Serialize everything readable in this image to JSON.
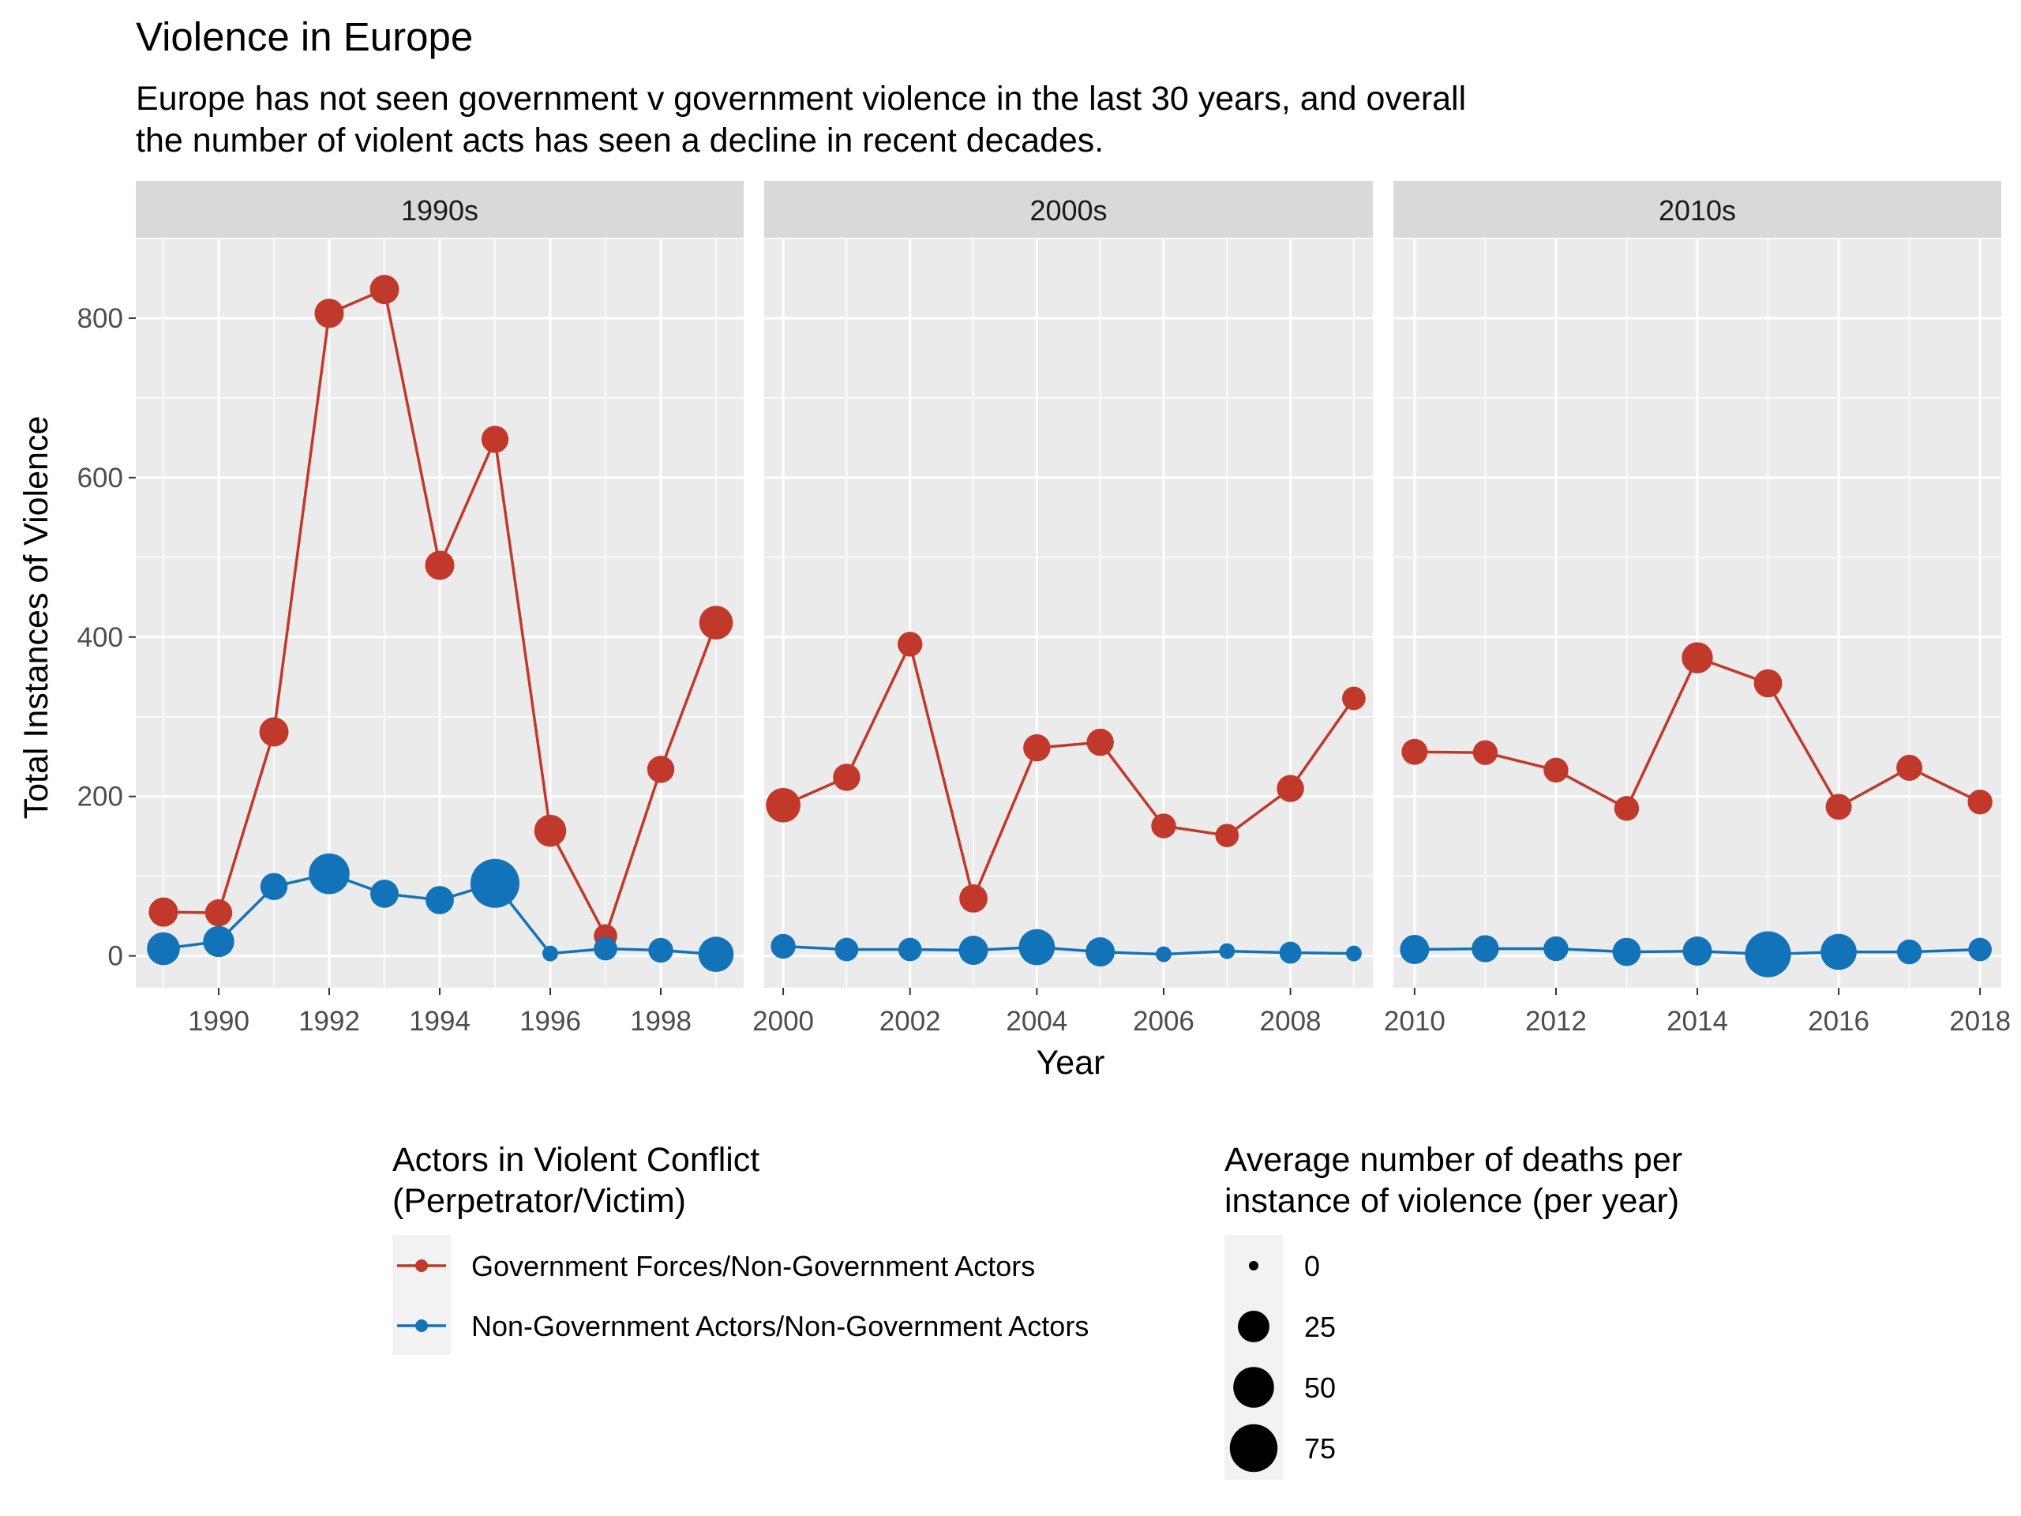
{
  "chart_data": {
    "type": "line",
    "title": "Violence in Europe",
    "subtitle_lines": [
      "Europe has not seen government v government violence in the last 30 years, and overall",
      "the number of violent acts has seen a decline in recent decades."
    ],
    "xlabel": "Year",
    "ylabel": "Total Instances of Violence",
    "ylim": [
      -40,
      900
    ],
    "yticks": [
      0,
      200,
      400,
      600,
      800
    ],
    "grid": true,
    "facets": [
      {
        "label": "1990s",
        "xlim": [
          1988.5,
          1999.5
        ],
        "xticks": [
          1990,
          1992,
          1994,
          1996,
          1998
        ]
      },
      {
        "label": "2000s",
        "xlim": [
          1999.7,
          2009.3
        ],
        "xticks": [
          2000,
          2002,
          2004,
          2006,
          2008
        ]
      },
      {
        "label": "2010s",
        "xlim": [
          2009.7,
          2018.3
        ],
        "xticks": [
          2010,
          2012,
          2014,
          2016,
          2018
        ]
      }
    ],
    "series": [
      {
        "name": "Government Forces/Non-Government Actors",
        "color": "#c0392b",
        "points": [
          {
            "x": 1989,
            "y": 55,
            "size": 20
          },
          {
            "x": 1990,
            "y": 54,
            "size": 16
          },
          {
            "x": 1991,
            "y": 281,
            "size": 20
          },
          {
            "x": 1992,
            "y": 806,
            "size": 20
          },
          {
            "x": 1993,
            "y": 836,
            "size": 20
          },
          {
            "x": 1994,
            "y": 490,
            "size": 20
          },
          {
            "x": 1995,
            "y": 648,
            "size": 16
          },
          {
            "x": 1996,
            "y": 157,
            "size": 26
          },
          {
            "x": 1997,
            "y": 25,
            "size": 10
          },
          {
            "x": 1998,
            "y": 234,
            "size": 16
          },
          {
            "x": 1999,
            "y": 418,
            "size": 30
          },
          {
            "x": 2000,
            "y": 189,
            "size": 32
          },
          {
            "x": 2001,
            "y": 224,
            "size": 16
          },
          {
            "x": 2002,
            "y": 391,
            "size": 12
          },
          {
            "x": 2003,
            "y": 72,
            "size": 18
          },
          {
            "x": 2004,
            "y": 261,
            "size": 16
          },
          {
            "x": 2005,
            "y": 268,
            "size": 16
          },
          {
            "x": 2006,
            "y": 163,
            "size": 12
          },
          {
            "x": 2007,
            "y": 151,
            "size": 10
          },
          {
            "x": 2008,
            "y": 210,
            "size": 16
          },
          {
            "x": 2009,
            "y": 323,
            "size": 10
          },
          {
            "x": 2010,
            "y": 256,
            "size": 14
          },
          {
            "x": 2011,
            "y": 255,
            "size": 12
          },
          {
            "x": 2012,
            "y": 233,
            "size": 12
          },
          {
            "x": 2013,
            "y": 185,
            "size": 12
          },
          {
            "x": 2014,
            "y": 374,
            "size": 24
          },
          {
            "x": 2015,
            "y": 342,
            "size": 18
          },
          {
            "x": 2016,
            "y": 187,
            "size": 14
          },
          {
            "x": 2017,
            "y": 236,
            "size": 14
          },
          {
            "x": 2018,
            "y": 193,
            "size": 12
          }
        ]
      },
      {
        "name": "Non-Government Actors/Non-Government Actors",
        "color": "#1273b9",
        "points": [
          {
            "x": 1989,
            "y": 9,
            "size": 28
          },
          {
            "x": 1990,
            "y": 18,
            "size": 24
          },
          {
            "x": 1991,
            "y": 87,
            "size": 16
          },
          {
            "x": 1992,
            "y": 103,
            "size": 50
          },
          {
            "x": 1993,
            "y": 78,
            "size": 18
          },
          {
            "x": 1994,
            "y": 70,
            "size": 18
          },
          {
            "x": 1995,
            "y": 91,
            "size": 80
          },
          {
            "x": 1996,
            "y": 3,
            "size": 2
          },
          {
            "x": 1997,
            "y": 9,
            "size": 10
          },
          {
            "x": 1998,
            "y": 7,
            "size": 12
          },
          {
            "x": 1999,
            "y": 2,
            "size": 34
          },
          {
            "x": 2000,
            "y": 12,
            "size": 12
          },
          {
            "x": 2001,
            "y": 8,
            "size": 10
          },
          {
            "x": 2002,
            "y": 8,
            "size": 10
          },
          {
            "x": 2003,
            "y": 7,
            "size": 20
          },
          {
            "x": 2004,
            "y": 11,
            "size": 36
          },
          {
            "x": 2005,
            "y": 5,
            "size": 20
          },
          {
            "x": 2006,
            "y": 2,
            "size": 2
          },
          {
            "x": 2007,
            "y": 6,
            "size": 2
          },
          {
            "x": 2008,
            "y": 4,
            "size": 8
          },
          {
            "x": 2009,
            "y": 3,
            "size": 2
          },
          {
            "x": 2010,
            "y": 8,
            "size": 20
          },
          {
            "x": 2011,
            "y": 9,
            "size": 16
          },
          {
            "x": 2012,
            "y": 9,
            "size": 12
          },
          {
            "x": 2013,
            "y": 5,
            "size": 18
          },
          {
            "x": 2014,
            "y": 6,
            "size": 20
          },
          {
            "x": 2015,
            "y": 2,
            "size": 68
          },
          {
            "x": 2016,
            "y": 5,
            "size": 36
          },
          {
            "x": 2017,
            "y": 5,
            "size": 12
          },
          {
            "x": 2018,
            "y": 8,
            "size": 10
          }
        ]
      }
    ],
    "legend_color": {
      "title_lines": [
        "Actors in Violent Conflict",
        "(Perpetrator/Victim)"
      ]
    },
    "legend_size": {
      "title_lines": [
        "Average number of deaths per",
        "instance of violence (per year)"
      ],
      "entries": [
        {
          "label": "0",
          "value": 0
        },
        {
          "label": "25",
          "value": 25
        },
        {
          "label": "50",
          "value": 50
        },
        {
          "label": "75",
          "value": 75
        }
      ]
    }
  }
}
